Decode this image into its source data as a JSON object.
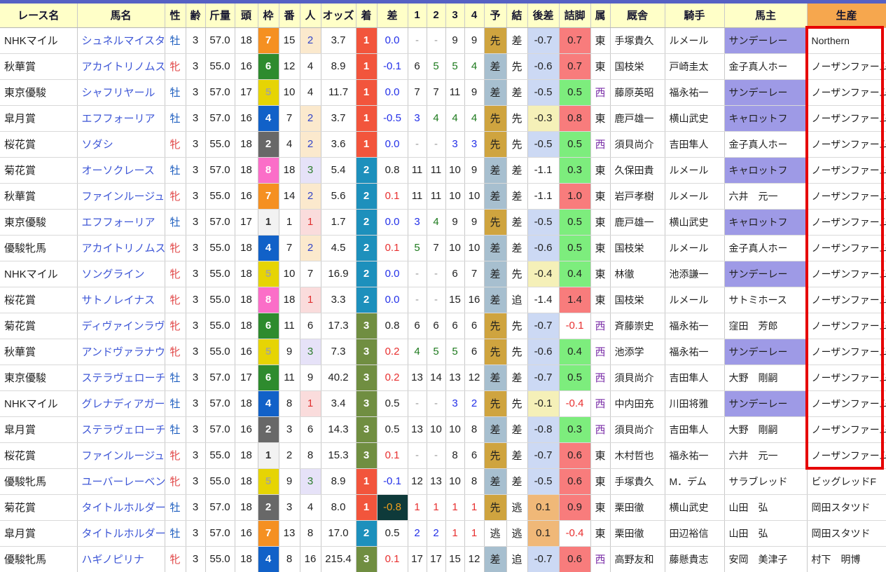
{
  "table": {
    "headers": [
      "レース名",
      "馬名",
      "性",
      "齢",
      "斤量",
      "頭",
      "枠",
      "番",
      "人",
      "オッズ",
      "着",
      "差",
      "1",
      "2",
      "3",
      "4",
      "予",
      "結",
      "後差",
      "詰脚",
      "属",
      "厩舎",
      "騎手",
      "馬主",
      "生産"
    ],
    "rows": [
      {
        "race": "NHKマイル",
        "horse": "シュネルマイスター",
        "sex": "牡",
        "age": "3",
        "weight": "57.0",
        "heads": "18",
        "frame": "7",
        "num": "15",
        "pop": "2",
        "odds": "3.7",
        "fin": "1",
        "margin": "0.0",
        "margin_special": false,
        "c1": "-",
        "c2": "-",
        "c3": "9",
        "c4": "9",
        "pred": "先",
        "res": "差",
        "late": "-0.7",
        "close": "0.7",
        "region": "東",
        "stable": "手塚貴久",
        "jockey": "ルメール",
        "owner": "サンデーレー",
        "owner_club": true,
        "breeder": "Northern"
      },
      {
        "race": "秋華賞",
        "horse": "アカイトリノムスメ",
        "sex": "牝",
        "age": "3",
        "weight": "55.0",
        "heads": "16",
        "frame": "6",
        "num": "12",
        "pop": "4",
        "odds": "8.9",
        "fin": "1",
        "margin": "-0.1",
        "margin_special": false,
        "c1": "6",
        "c2": "5",
        "c3": "5",
        "c4": "4",
        "pred": "差",
        "res": "先",
        "late": "-0.6",
        "close": "0.7",
        "region": "東",
        "stable": "国枝栄",
        "jockey": "戸崎圭太",
        "owner": "金子真人ホー",
        "owner_club": false,
        "breeder": "ノーザンファーム"
      },
      {
        "race": "東京優駿",
        "horse": "シャフリヤール",
        "sex": "牡",
        "age": "3",
        "weight": "57.0",
        "heads": "17",
        "frame": "5",
        "num": "10",
        "pop": "4",
        "odds": "11.7",
        "fin": "1",
        "margin": "0.0",
        "margin_special": false,
        "c1": "7",
        "c2": "7",
        "c3": "11",
        "c4": "9",
        "pred": "差",
        "res": "差",
        "late": "-0.5",
        "close": "0.5",
        "region": "西",
        "stable": "藤原英昭",
        "jockey": "福永祐一",
        "owner": "サンデーレー",
        "owner_club": true,
        "breeder": "ノーザンファーム"
      },
      {
        "race": "皐月賞",
        "horse": "エフフォーリア",
        "sex": "牡",
        "age": "3",
        "weight": "57.0",
        "heads": "16",
        "frame": "4",
        "num": "7",
        "pop": "2",
        "odds": "3.7",
        "fin": "1",
        "margin": "-0.5",
        "margin_special": false,
        "c1": "3",
        "c2": "4",
        "c3": "4",
        "c4": "4",
        "pred": "先",
        "res": "先",
        "late": "-0.3",
        "close": "0.8",
        "region": "東",
        "stable": "鹿戸雄一",
        "jockey": "横山武史",
        "owner": "キャロットフ",
        "owner_club": true,
        "breeder": "ノーザンファーム"
      },
      {
        "race": "桜花賞",
        "horse": "ソダシ",
        "sex": "牝",
        "age": "3",
        "weight": "55.0",
        "heads": "18",
        "frame": "2",
        "num": "4",
        "pop": "2",
        "odds": "3.6",
        "fin": "1",
        "margin": "0.0",
        "margin_special": false,
        "c1": "-",
        "c2": "-",
        "c3": "3",
        "c4": "3",
        "pred": "先",
        "res": "先",
        "late": "-0.5",
        "close": "0.5",
        "region": "西",
        "stable": "須貝尚介",
        "jockey": "吉田隼人",
        "owner": "金子真人ホー",
        "owner_club": false,
        "breeder": "ノーザンファーム"
      },
      {
        "race": "菊花賞",
        "horse": "オーソクレース",
        "sex": "牡",
        "age": "3",
        "weight": "57.0",
        "heads": "18",
        "frame": "8",
        "num": "18",
        "pop": "3",
        "odds": "5.4",
        "fin": "2",
        "margin": "0.8",
        "margin_special": false,
        "c1": "11",
        "c2": "11",
        "c3": "10",
        "c4": "9",
        "pred": "差",
        "res": "差",
        "late": "-1.1",
        "close": "0.3",
        "region": "東",
        "stable": "久保田貴",
        "jockey": "ルメール",
        "owner": "キャロットフ",
        "owner_club": true,
        "breeder": "ノーザンファーム"
      },
      {
        "race": "秋華賞",
        "horse": "ファインルージュ",
        "sex": "牝",
        "age": "3",
        "weight": "55.0",
        "heads": "16",
        "frame": "7",
        "num": "14",
        "pop": "2",
        "odds": "5.6",
        "fin": "2",
        "margin": "0.1",
        "margin_special": false,
        "c1": "11",
        "c2": "11",
        "c3": "10",
        "c4": "10",
        "pred": "差",
        "res": "差",
        "late": "-1.1",
        "close": "1.0",
        "region": "東",
        "stable": "岩戸孝樹",
        "jockey": "ルメール",
        "owner": "六井　元一",
        "owner_club": false,
        "breeder": "ノーザンファーム"
      },
      {
        "race": "東京優駿",
        "horse": "エフフォーリア",
        "sex": "牡",
        "age": "3",
        "weight": "57.0",
        "heads": "17",
        "frame": "1",
        "num": "1",
        "pop": "1",
        "odds": "1.7",
        "fin": "2",
        "margin": "0.0",
        "margin_special": false,
        "c1": "3",
        "c2": "4",
        "c3": "9",
        "c4": "9",
        "pred": "先",
        "res": "差",
        "late": "-0.5",
        "close": "0.5",
        "region": "東",
        "stable": "鹿戸雄一",
        "jockey": "横山武史",
        "owner": "キャロットフ",
        "owner_club": true,
        "breeder": "ノーザンファーム"
      },
      {
        "race": "優駿牝馬",
        "horse": "アカイトリノムスメ",
        "sex": "牝",
        "age": "3",
        "weight": "55.0",
        "heads": "18",
        "frame": "4",
        "num": "7",
        "pop": "2",
        "odds": "4.5",
        "fin": "2",
        "margin": "0.1",
        "margin_special": false,
        "c1": "5",
        "c2": "7",
        "c3": "10",
        "c4": "10",
        "pred": "差",
        "res": "差",
        "late": "-0.6",
        "close": "0.5",
        "region": "東",
        "stable": "国枝栄",
        "jockey": "ルメール",
        "owner": "金子真人ホー",
        "owner_club": false,
        "breeder": "ノーザンファーム"
      },
      {
        "race": "NHKマイル",
        "horse": "ソングライン",
        "sex": "牝",
        "age": "3",
        "weight": "55.0",
        "heads": "18",
        "frame": "5",
        "num": "10",
        "pop": "7",
        "odds": "16.9",
        "fin": "2",
        "margin": "0.0",
        "margin_special": false,
        "c1": "-",
        "c2": "-",
        "c3": "6",
        "c4": "7",
        "pred": "差",
        "res": "先",
        "late": "-0.4",
        "close": "0.4",
        "region": "東",
        "stable": "林徹",
        "jockey": "池添謙一",
        "owner": "サンデーレー",
        "owner_club": true,
        "breeder": "ノーザンファーム"
      },
      {
        "race": "桜花賞",
        "horse": "サトノレイナス",
        "sex": "牝",
        "age": "3",
        "weight": "55.0",
        "heads": "18",
        "frame": "8",
        "num": "18",
        "pop": "1",
        "odds": "3.3",
        "fin": "2",
        "margin": "0.0",
        "margin_special": false,
        "c1": "-",
        "c2": "-",
        "c3": "15",
        "c4": "16",
        "pred": "差",
        "res": "追",
        "late": "-1.4",
        "close": "1.4",
        "region": "東",
        "stable": "国枝栄",
        "jockey": "ルメール",
        "owner": "サトミホース",
        "owner_club": false,
        "breeder": "ノーザンファーム"
      },
      {
        "race": "菊花賞",
        "horse": "ディヴァインラヴ",
        "sex": "牝",
        "age": "3",
        "weight": "55.0",
        "heads": "18",
        "frame": "6",
        "num": "11",
        "pop": "6",
        "odds": "17.3",
        "fin": "3",
        "margin": "0.8",
        "margin_special": false,
        "c1": "6",
        "c2": "6",
        "c3": "6",
        "c4": "6",
        "pred": "先",
        "res": "先",
        "late": "-0.7",
        "close": "-0.1",
        "region": "西",
        "stable": "斉藤崇史",
        "jockey": "福永祐一",
        "owner": "窪田　芳郎",
        "owner_club": false,
        "breeder": "ノーザンファーム"
      },
      {
        "race": "秋華賞",
        "horse": "アンドヴァラナウト",
        "sex": "牝",
        "age": "3",
        "weight": "55.0",
        "heads": "16",
        "frame": "5",
        "num": "9",
        "pop": "3",
        "odds": "7.3",
        "fin": "3",
        "margin": "0.2",
        "margin_special": false,
        "c1": "4",
        "c2": "5",
        "c3": "5",
        "c4": "6",
        "pred": "先",
        "res": "先",
        "late": "-0.6",
        "close": "0.4",
        "region": "西",
        "stable": "池添学",
        "jockey": "福永祐一",
        "owner": "サンデーレー",
        "owner_club": true,
        "breeder": "ノーザンファーム"
      },
      {
        "race": "東京優駿",
        "horse": "ステラヴェローチェ",
        "sex": "牡",
        "age": "3",
        "weight": "57.0",
        "heads": "17",
        "frame": "6",
        "num": "11",
        "pop": "9",
        "odds": "40.2",
        "fin": "3",
        "margin": "0.2",
        "margin_special": false,
        "c1": "13",
        "c2": "14",
        "c3": "13",
        "c4": "12",
        "pred": "差",
        "res": "差",
        "late": "-0.7",
        "close": "0.5",
        "region": "西",
        "stable": "須貝尚介",
        "jockey": "吉田隼人",
        "owner": "大野　剛嗣",
        "owner_club": false,
        "breeder": "ノーザンファーム"
      },
      {
        "race": "NHKマイル",
        "horse": "グレナディアガーズ",
        "sex": "牡",
        "age": "3",
        "weight": "57.0",
        "heads": "18",
        "frame": "4",
        "num": "8",
        "pop": "1",
        "odds": "3.4",
        "fin": "3",
        "margin": "0.5",
        "margin_special": false,
        "c1": "-",
        "c2": "-",
        "c3": "3",
        "c4": "2",
        "pred": "先",
        "res": "先",
        "late": "-0.1",
        "close": "-0.4",
        "region": "西",
        "stable": "中内田充",
        "jockey": "川田将雅",
        "owner": "サンデーレー",
        "owner_club": true,
        "breeder": "ノーザンファーム"
      },
      {
        "race": "皐月賞",
        "horse": "ステラヴェローチェ",
        "sex": "牡",
        "age": "3",
        "weight": "57.0",
        "heads": "16",
        "frame": "2",
        "num": "3",
        "pop": "6",
        "odds": "14.3",
        "fin": "3",
        "margin": "0.5",
        "margin_special": false,
        "c1": "13",
        "c2": "10",
        "c3": "10",
        "c4": "8",
        "pred": "差",
        "res": "差",
        "late": "-0.8",
        "close": "0.3",
        "region": "西",
        "stable": "須貝尚介",
        "jockey": "吉田隼人",
        "owner": "大野　剛嗣",
        "owner_club": false,
        "breeder": "ノーザンファーム"
      },
      {
        "race": "桜花賞",
        "horse": "ファインルージュ",
        "sex": "牝",
        "age": "3",
        "weight": "55.0",
        "heads": "18",
        "frame": "1",
        "num": "2",
        "pop": "8",
        "odds": "15.3",
        "fin": "3",
        "margin": "0.1",
        "margin_special": false,
        "c1": "-",
        "c2": "-",
        "c3": "8",
        "c4": "6",
        "pred": "先",
        "res": "差",
        "late": "-0.7",
        "close": "0.6",
        "region": "東",
        "stable": "木村哲也",
        "jockey": "福永祐一",
        "owner": "六井　元一",
        "owner_club": false,
        "breeder": "ノーザンファーム"
      },
      {
        "race": "優駿牝馬",
        "horse": "ユーバーレーベン",
        "sex": "牝",
        "age": "3",
        "weight": "55.0",
        "heads": "18",
        "frame": "5",
        "num": "9",
        "pop": "3",
        "odds": "8.9",
        "fin": "1",
        "margin": "-0.1",
        "margin_special": false,
        "c1": "12",
        "c2": "13",
        "c3": "10",
        "c4": "8",
        "pred": "差",
        "res": "差",
        "late": "-0.5",
        "close": "0.6",
        "region": "東",
        "stable": "手塚貴久",
        "jockey": "M．デム",
        "owner": "サラブレッド",
        "owner_club": false,
        "breeder": "ビッグレッドF"
      },
      {
        "race": "菊花賞",
        "horse": "タイトルホルダー",
        "sex": "牡",
        "age": "3",
        "weight": "57.0",
        "heads": "18",
        "frame": "2",
        "num": "3",
        "pop": "4",
        "odds": "8.0",
        "fin": "1",
        "margin": "-0.8",
        "margin_special": true,
        "c1": "1",
        "c2": "1",
        "c3": "1",
        "c4": "1",
        "pred": "先",
        "res": "逃",
        "late": "0.1",
        "close": "0.9",
        "region": "東",
        "stable": "栗田徹",
        "jockey": "横山武史",
        "owner": "山田　弘",
        "owner_club": false,
        "breeder": "岡田スタツド"
      },
      {
        "race": "皐月賞",
        "horse": "タイトルホルダー",
        "sex": "牡",
        "age": "3",
        "weight": "57.0",
        "heads": "16",
        "frame": "7",
        "num": "13",
        "pop": "8",
        "odds": "17.0",
        "fin": "2",
        "margin": "0.5",
        "margin_special": false,
        "c1": "2",
        "c2": "2",
        "c3": "1",
        "c4": "1",
        "pred": "逃",
        "res": "逃",
        "late": "0.1",
        "close": "-0.4",
        "region": "東",
        "stable": "栗田徹",
        "jockey": "田辺裕信",
        "owner": "山田　弘",
        "owner_club": false,
        "breeder": "岡田スタツド"
      },
      {
        "race": "優駿牝馬",
        "horse": "ハギノピリナ",
        "sex": "牝",
        "age": "3",
        "weight": "55.0",
        "heads": "18",
        "frame": "4",
        "num": "8",
        "pop": "16",
        "odds": "215.4",
        "fin": "3",
        "margin": "0.1",
        "margin_special": false,
        "c1": "17",
        "c2": "17",
        "c3": "15",
        "c4": "12",
        "pred": "差",
        "res": "追",
        "late": "-0.7",
        "close": "0.6",
        "region": "西",
        "stable": "高野友和",
        "jockey": "藤懸貴志",
        "owner": "安岡　美津子",
        "owner_club": false,
        "breeder": "村下　明博"
      }
    ]
  },
  "colors": {
    "header_bg": "#ffffc8",
    "breeder_header_bg": "#f6a74e",
    "topbar": "#5661c4",
    "highlight_box_red": "#e60000",
    "horse_link_blue": "#3d56d6",
    "owner_club_bg": "#9e9ae6",
    "frame": {
      "1": "#f2f2f2",
      "2": "#686868",
      "3": "#e03c46",
      "4": "#1161c8",
      "5": "#e6d404",
      "6": "#2e8b2e",
      "7": "#f59021",
      "8": "#fb6ec8"
    },
    "finish": {
      "1": "#f2553c",
      "2": "#1d90bc",
      "3": "#708e41"
    },
    "pred_sen_bg": "#cfa43f",
    "pred_sa_bg": "#a7bfcf",
    "late_blue_bg": "#ccd9f4",
    "late_yellow_bg": "#f5f0b8",
    "late_orange_bg": "#f0b878",
    "close_green_bg": "#7ded7d",
    "close_red_bg": "#f87c7c",
    "margin_special_bg": "#0e3a3a",
    "margin_special_text": "#f0a01e"
  }
}
